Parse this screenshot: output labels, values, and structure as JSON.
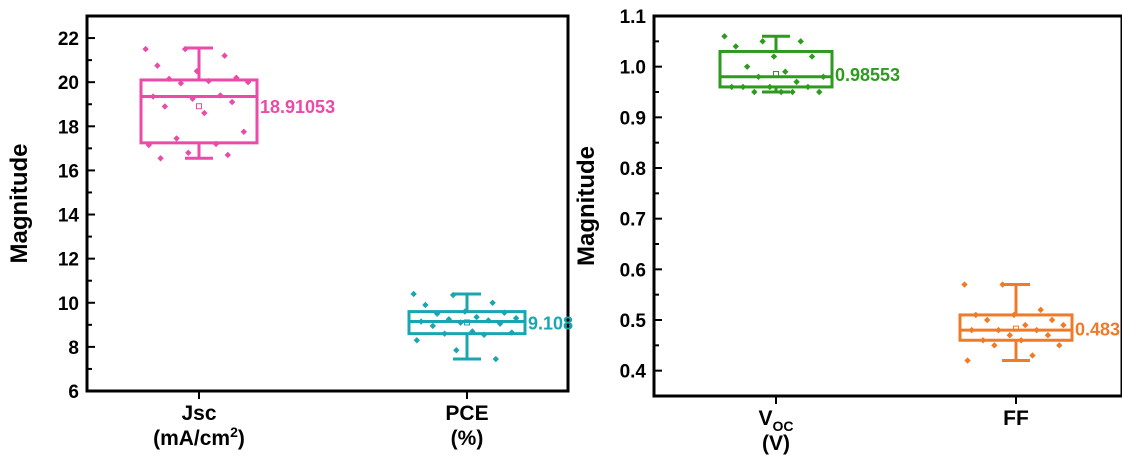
{
  "chart_data": [
    {
      "type": "box",
      "ylabel": "Magnitude",
      "ylim": [
        6,
        23
      ],
      "yticks": [
        6,
        8,
        10,
        12,
        14,
        16,
        18,
        20,
        22
      ],
      "categories": [
        {
          "line1": "Jsc",
          "line2_base": "(mA/cm",
          "line2_sup": "2",
          "line2_end": ")"
        },
        {
          "line1": "PCE",
          "line2_base": "(%)",
          "line2_sup": "",
          "line2_end": ""
        }
      ],
      "boxes": [
        {
          "color": "#ec4aa8",
          "whisker_low": 16.55,
          "q1": 17.25,
          "median": 19.35,
          "q3": 20.1,
          "whisker_high": 21.55,
          "mean": 18.91053,
          "mean_label": "18.91053",
          "points": [
            21.5,
            21.5,
            21.2,
            20.75,
            20.5,
            20.2,
            20.15,
            20.05,
            20.0,
            19.95,
            19.4,
            19.35,
            19.25,
            19.1,
            18.9,
            18.6,
            17.75,
            17.45,
            17.2,
            17.15,
            16.8,
            16.7,
            16.55
          ]
        },
        {
          "color": "#1aa6b0",
          "whisker_low": 7.45,
          "q1": 8.6,
          "median": 9.15,
          "q3": 9.6,
          "whisker_high": 10.4,
          "mean": 9.108,
          "mean_label": "9.108",
          "points": [
            10.4,
            10.35,
            10.0,
            9.9,
            9.6,
            9.55,
            9.5,
            9.35,
            9.3,
            9.25,
            9.2,
            9.15,
            9.1,
            9.05,
            8.95,
            8.7,
            8.65,
            8.6,
            8.55,
            8.3,
            7.85,
            7.45
          ]
        }
      ]
    },
    {
      "type": "box",
      "ylabel": "Magnitude",
      "ylim": [
        0.35,
        1.1
      ],
      "yticks": [
        0.4,
        0.5,
        0.6,
        0.7,
        0.8,
        0.9,
        1.0,
        1.1
      ],
      "ytick_labels": [
        "0.4",
        "0.5",
        "0.6",
        "0.7",
        "0.8",
        "0.9",
        "1.0",
        "1.1"
      ],
      "categories": [
        {
          "line1": "V",
          "line1_sub": "OC",
          "line2_base": "(V)",
          "line2_sup": "",
          "line2_end": ""
        },
        {
          "line1": "FF",
          "line1_sub": "",
          "line2_base": "",
          "line2_sup": "",
          "line2_end": ""
        }
      ],
      "boxes": [
        {
          "color": "#2e9a1f",
          "whisker_low": 0.95,
          "q1": 0.96,
          "median": 0.98,
          "q3": 1.03,
          "whisker_high": 1.06,
          "mean": 0.98553,
          "mean_label": "0.98553",
          "points": [
            1.06,
            1.05,
            1.05,
            1.04,
            1.02,
            1.02,
            1.0,
            0.99,
            0.98,
            0.98,
            0.97,
            0.96,
            0.96,
            0.96,
            0.96,
            0.95,
            0.95,
            0.95,
            0.95
          ]
        },
        {
          "color": "#f07a26",
          "whisker_low": 0.42,
          "q1": 0.46,
          "median": 0.48,
          "q3": 0.51,
          "whisker_high": 0.57,
          "mean": 0.483,
          "mean_label": "0.483",
          "points": [
            0.57,
            0.57,
            0.52,
            0.51,
            0.51,
            0.5,
            0.5,
            0.49,
            0.49,
            0.48,
            0.48,
            0.48,
            0.47,
            0.47,
            0.46,
            0.46,
            0.45,
            0.45,
            0.43,
            0.42
          ]
        }
      ]
    }
  ]
}
